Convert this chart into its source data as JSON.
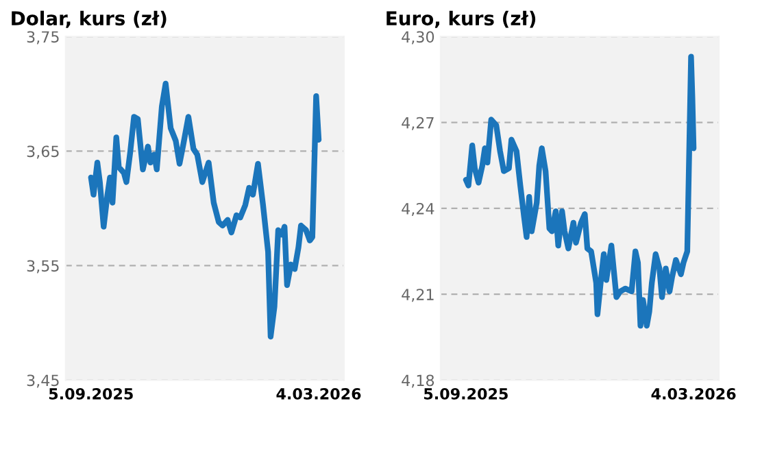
{
  "chart_data": [
    {
      "type": "line",
      "title": "Dolar, kurs (zł)",
      "grid": "y",
      "line_style": "solid",
      "marker": "none",
      "xlim": [
        "2025-08-16",
        "2026-03-24"
      ],
      "xticks": [
        {
          "value": "2025-09-05",
          "label": "5.09.2025"
        },
        {
          "value": "2026-03-04",
          "label": "4.03.2026"
        }
      ],
      "ylim": [
        3.45,
        3.75
      ],
      "yticks": [
        {
          "value": 3.45,
          "label": "3,45"
        },
        {
          "value": 3.55,
          "label": "3,55"
        },
        {
          "value": 3.65,
          "label": "3,65"
        },
        {
          "value": 3.75,
          "label": "3,75"
        }
      ],
      "series": [
        {
          "color": "#1b75bb",
          "x": [
            "2025-09-05",
            "2025-09-07",
            "2025-09-10",
            "2025-09-12",
            "2025-09-15",
            "2025-09-18",
            "2025-09-20",
            "2025-09-22",
            "2025-09-25",
            "2025-09-27",
            "2025-10-01",
            "2025-10-03",
            "2025-10-06",
            "2025-10-09",
            "2025-10-12",
            "2025-10-16",
            "2025-10-20",
            "2025-10-22",
            "2025-10-25",
            "2025-10-27",
            "2025-10-31",
            "2025-11-03",
            "2025-11-07",
            "2025-11-11",
            "2025-11-14",
            "2025-11-17",
            "2025-11-21",
            "2025-11-25",
            "2025-11-28",
            "2025-12-02",
            "2025-12-07",
            "2025-12-11",
            "2025-12-15",
            "2025-12-18",
            "2025-12-22",
            "2025-12-25",
            "2025-12-29",
            "2026-01-01",
            "2026-01-05",
            "2026-01-08",
            "2026-01-11",
            "2026-01-15",
            "2026-01-19",
            "2026-01-23",
            "2026-01-25",
            "2026-01-28",
            "2026-01-31",
            "2026-02-03",
            "2026-02-05",
            "2026-02-07",
            "2026-02-10",
            "2026-02-13",
            "2026-02-16",
            "2026-02-18",
            "2026-02-22",
            "2026-02-25",
            "2026-02-27",
            "2026-03-02",
            "2026-03-04"
          ],
          "values": [
            3.627,
            3.612,
            3.64,
            3.623,
            3.584,
            3.612,
            3.627,
            3.605,
            3.662,
            3.636,
            3.631,
            3.623,
            3.649,
            3.68,
            3.678,
            3.634,
            3.654,
            3.64,
            3.647,
            3.634,
            3.689,
            3.709,
            3.67,
            3.659,
            3.639,
            3.656,
            3.68,
            3.652,
            3.647,
            3.623,
            3.64,
            3.605,
            3.588,
            3.585,
            3.59,
            3.579,
            3.594,
            3.592,
            3.603,
            3.618,
            3.612,
            3.639,
            3.603,
            3.562,
            3.488,
            3.514,
            3.581,
            3.577,
            3.584,
            3.533,
            3.551,
            3.547,
            3.566,
            3.585,
            3.581,
            3.572,
            3.575,
            3.698,
            3.66
          ]
        }
      ]
    },
    {
      "type": "line",
      "title": "Euro, kurs (zł)",
      "grid": "y",
      "line_style": "solid",
      "marker": "none",
      "xlim": [
        "2025-08-16",
        "2026-03-24"
      ],
      "xticks": [
        {
          "value": "2025-09-05",
          "label": "5.09.2025"
        },
        {
          "value": "2026-03-04",
          "label": "4.03.2026"
        }
      ],
      "ylim": [
        4.18,
        4.3
      ],
      "yticks": [
        {
          "value": 4.18,
          "label": "4,18"
        },
        {
          "value": 4.21,
          "label": "4,21"
        },
        {
          "value": 4.24,
          "label": "4,24"
        },
        {
          "value": 4.27,
          "label": "4,27"
        },
        {
          "value": 4.3,
          "label": "4,30"
        }
      ],
      "series": [
        {
          "color": "#1b75bb",
          "x": [
            "2025-09-05",
            "2025-09-07",
            "2025-09-10",
            "2025-09-12",
            "2025-09-15",
            "2025-09-18",
            "2025-09-20",
            "2025-09-22",
            "2025-09-25",
            "2025-09-29",
            "2025-10-02",
            "2025-10-05",
            "2025-10-09",
            "2025-10-11",
            "2025-10-15",
            "2025-10-18",
            "2025-10-21",
            "2025-10-23",
            "2025-10-25",
            "2025-10-27",
            "2025-10-31",
            "2025-11-02",
            "2025-11-04",
            "2025-11-07",
            "2025-11-10",
            "2025-11-12",
            "2025-11-15",
            "2025-11-17",
            "2025-11-20",
            "2025-11-22",
            "2025-11-25",
            "2025-11-29",
            "2025-12-01",
            "2025-12-05",
            "2025-12-08",
            "2025-12-10",
            "2025-12-13",
            "2025-12-17",
            "2025-12-18",
            "2025-12-21",
            "2025-12-23",
            "2025-12-25",
            "2025-12-29",
            "2026-01-02",
            "2026-01-05",
            "2026-01-09",
            "2026-01-14",
            "2026-01-17",
            "2026-01-19",
            "2026-01-21",
            "2026-01-23",
            "2026-01-26",
            "2026-01-28",
            "2026-01-30",
            "2026-02-02",
            "2026-02-05",
            "2026-02-07",
            "2026-02-10",
            "2026-02-13",
            "2026-02-15",
            "2026-02-18",
            "2026-02-22",
            "2026-02-24",
            "2026-02-27",
            "2026-03-02",
            "2026-03-03",
            "2026-03-04"
          ],
          "values": [
            4.25,
            4.248,
            4.262,
            4.254,
            4.249,
            4.255,
            4.261,
            4.256,
            4.271,
            4.269,
            4.26,
            4.253,
            4.254,
            4.264,
            4.26,
            4.248,
            4.237,
            4.23,
            4.244,
            4.232,
            4.242,
            4.255,
            4.261,
            4.253,
            4.233,
            4.232,
            4.239,
            4.227,
            4.239,
            4.232,
            4.226,
            4.235,
            4.228,
            4.235,
            4.238,
            4.226,
            4.225,
            4.214,
            4.203,
            4.216,
            4.224,
            4.215,
            4.227,
            4.209,
            4.211,
            4.212,
            4.211,
            4.225,
            4.221,
            4.199,
            4.208,
            4.199,
            4.204,
            4.214,
            4.224,
            4.219,
            4.209,
            4.219,
            4.211,
            4.216,
            4.222,
            4.217,
            4.221,
            4.225,
            4.293,
            4.279,
            4.261
          ]
        }
      ]
    }
  ]
}
